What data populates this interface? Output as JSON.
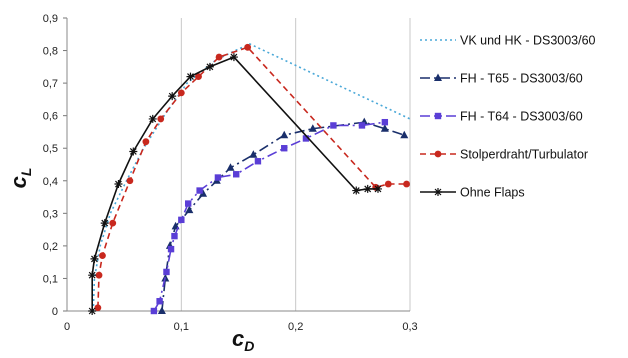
{
  "chart_data": {
    "type": "line",
    "xlabel": "c",
    "xlabel_sub": "D",
    "ylabel": "c",
    "ylabel_sub": "L",
    "xlim": [
      0,
      0.3
    ],
    "ylim": [
      0,
      0.9
    ],
    "x_ticks": [
      "0",
      "0,1",
      "0,2",
      "0,3"
    ],
    "y_ticks": [
      "0",
      "0,1",
      "0,2",
      "0,3",
      "0,4",
      "0,5",
      "0,6",
      "0,7",
      "0,8",
      "0,9"
    ],
    "grid": "vertical",
    "legend_position": "right",
    "series": [
      {
        "name": "VK und HK - DS3003/60",
        "color": "#4aa8d8",
        "dash": "2,3",
        "marker": "none",
        "points": [
          [
            0.023,
            0.0
          ],
          [
            0.024,
            0.1
          ],
          [
            0.029,
            0.2
          ],
          [
            0.038,
            0.3
          ],
          [
            0.052,
            0.4
          ],
          [
            0.067,
            0.5
          ],
          [
            0.085,
            0.6
          ],
          [
            0.105,
            0.7
          ],
          [
            0.13,
            0.77
          ],
          [
            0.147,
            0.8
          ],
          [
            0.16,
            0.82
          ],
          [
            0.3,
            0.59
          ]
        ]
      },
      {
        "name": "FH - T65 - DS3003/60",
        "color": "#1a2f6b",
        "dash": "10,4,2,4",
        "marker": "triangle",
        "points": [
          [
            0.083,
            0.0
          ],
          [
            0.086,
            0.1
          ],
          [
            0.09,
            0.2
          ],
          [
            0.095,
            0.26
          ],
          [
            0.107,
            0.31
          ],
          [
            0.119,
            0.36
          ],
          [
            0.131,
            0.4
          ],
          [
            0.143,
            0.44
          ],
          [
            0.163,
            0.48
          ],
          [
            0.19,
            0.54
          ],
          [
            0.215,
            0.56
          ],
          [
            0.26,
            0.58
          ],
          [
            0.278,
            0.56
          ],
          [
            0.295,
            0.54
          ]
        ]
      },
      {
        "name": "FH - T64 - DS3003/60",
        "color": "#5a3ed6",
        "dash": "10,4,2,4,2,4",
        "marker": "square",
        "points": [
          [
            0.076,
            0.0
          ],
          [
            0.081,
            0.03
          ],
          [
            0.087,
            0.12
          ],
          [
            0.091,
            0.19
          ],
          [
            0.094,
            0.23
          ],
          [
            0.1,
            0.28
          ],
          [
            0.106,
            0.33
          ],
          [
            0.116,
            0.37
          ],
          [
            0.132,
            0.41
          ],
          [
            0.148,
            0.42
          ],
          [
            0.167,
            0.46
          ],
          [
            0.19,
            0.5
          ],
          [
            0.209,
            0.53
          ],
          [
            0.233,
            0.57
          ],
          [
            0.258,
            0.57
          ],
          [
            0.278,
            0.58
          ]
        ]
      },
      {
        "name": "Stolperdraht/Turbulator",
        "color": "#c8281e",
        "dash": "6,4",
        "marker": "circle",
        "points": [
          [
            0.027,
            0.01
          ],
          [
            0.028,
            0.11
          ],
          [
            0.031,
            0.17
          ],
          [
            0.04,
            0.27
          ],
          [
            0.055,
            0.4
          ],
          [
            0.069,
            0.52
          ],
          [
            0.082,
            0.59
          ],
          [
            0.1,
            0.67
          ],
          [
            0.115,
            0.72
          ],
          [
            0.133,
            0.78
          ],
          [
            0.158,
            0.81
          ],
          [
            0.27,
            0.38
          ],
          [
            0.281,
            0.39
          ],
          [
            0.297,
            0.39
          ]
        ]
      },
      {
        "name": "Ohne Flaps",
        "color": "#111111",
        "dash": "",
        "marker": "star",
        "points": [
          [
            0.022,
            0.0
          ],
          [
            0.022,
            0.11
          ],
          [
            0.024,
            0.16
          ],
          [
            0.033,
            0.27
          ],
          [
            0.045,
            0.39
          ],
          [
            0.058,
            0.49
          ],
          [
            0.075,
            0.59
          ],
          [
            0.092,
            0.66
          ],
          [
            0.108,
            0.72
          ],
          [
            0.125,
            0.75
          ],
          [
            0.146,
            0.78
          ],
          [
            0.253,
            0.37
          ],
          [
            0.263,
            0.375
          ],
          [
            0.272,
            0.375
          ]
        ]
      }
    ]
  }
}
